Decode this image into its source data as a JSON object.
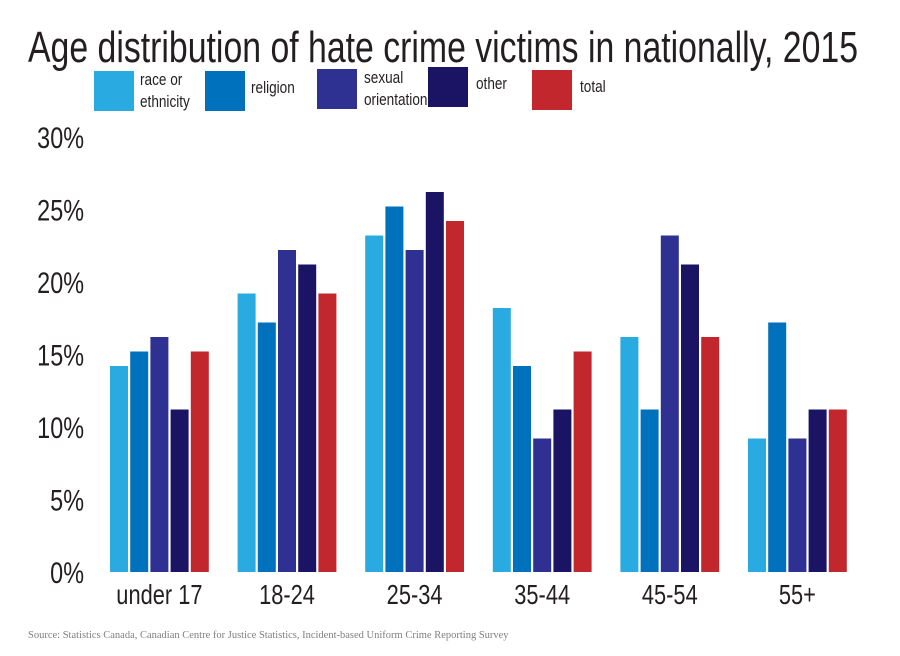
{
  "chart_data": {
    "type": "bar",
    "title": "Age distribution of hate crime victims in nationally, 2015",
    "categories": [
      "under 17",
      "18-24",
      "25-34",
      "35-44",
      "45-54",
      "55+"
    ],
    "series": [
      {
        "name": "race or ethnicity",
        "color": "#29abe2",
        "values": [
          14,
          19,
          23,
          18,
          16,
          9
        ]
      },
      {
        "name": "religion",
        "color": "#0071bc",
        "values": [
          15,
          17,
          25,
          14,
          11,
          17
        ]
      },
      {
        "name": "sexual orientation",
        "color": "#2e3192",
        "values": [
          16,
          22,
          22,
          9,
          23,
          9
        ]
      },
      {
        "name": "other",
        "color": "#1b1464",
        "values": [
          11,
          21,
          26,
          11,
          21,
          11
        ]
      },
      {
        "name": "total",
        "color": "#c1272d",
        "values": [
          15,
          19,
          24,
          15,
          16,
          11
        ]
      }
    ],
    "legend_labels": [
      [
        "race or",
        "ethnicity"
      ],
      [
        "religion"
      ],
      [
        "sexual",
        "orientation"
      ],
      [
        "other"
      ],
      [
        "total"
      ]
    ],
    "yticks": [
      "0%",
      "5%",
      "10%",
      "15%",
      "20%",
      "25%",
      "30%"
    ],
    "ylim": [
      0,
      30
    ],
    "xlabel": "",
    "ylabel": "",
    "grid": false,
    "legend_position": "top",
    "source": "Source: Statistics Canada, Canadian Centre for Justice Statistics, Incident-based Uniform Crime Reporting Survey"
  }
}
